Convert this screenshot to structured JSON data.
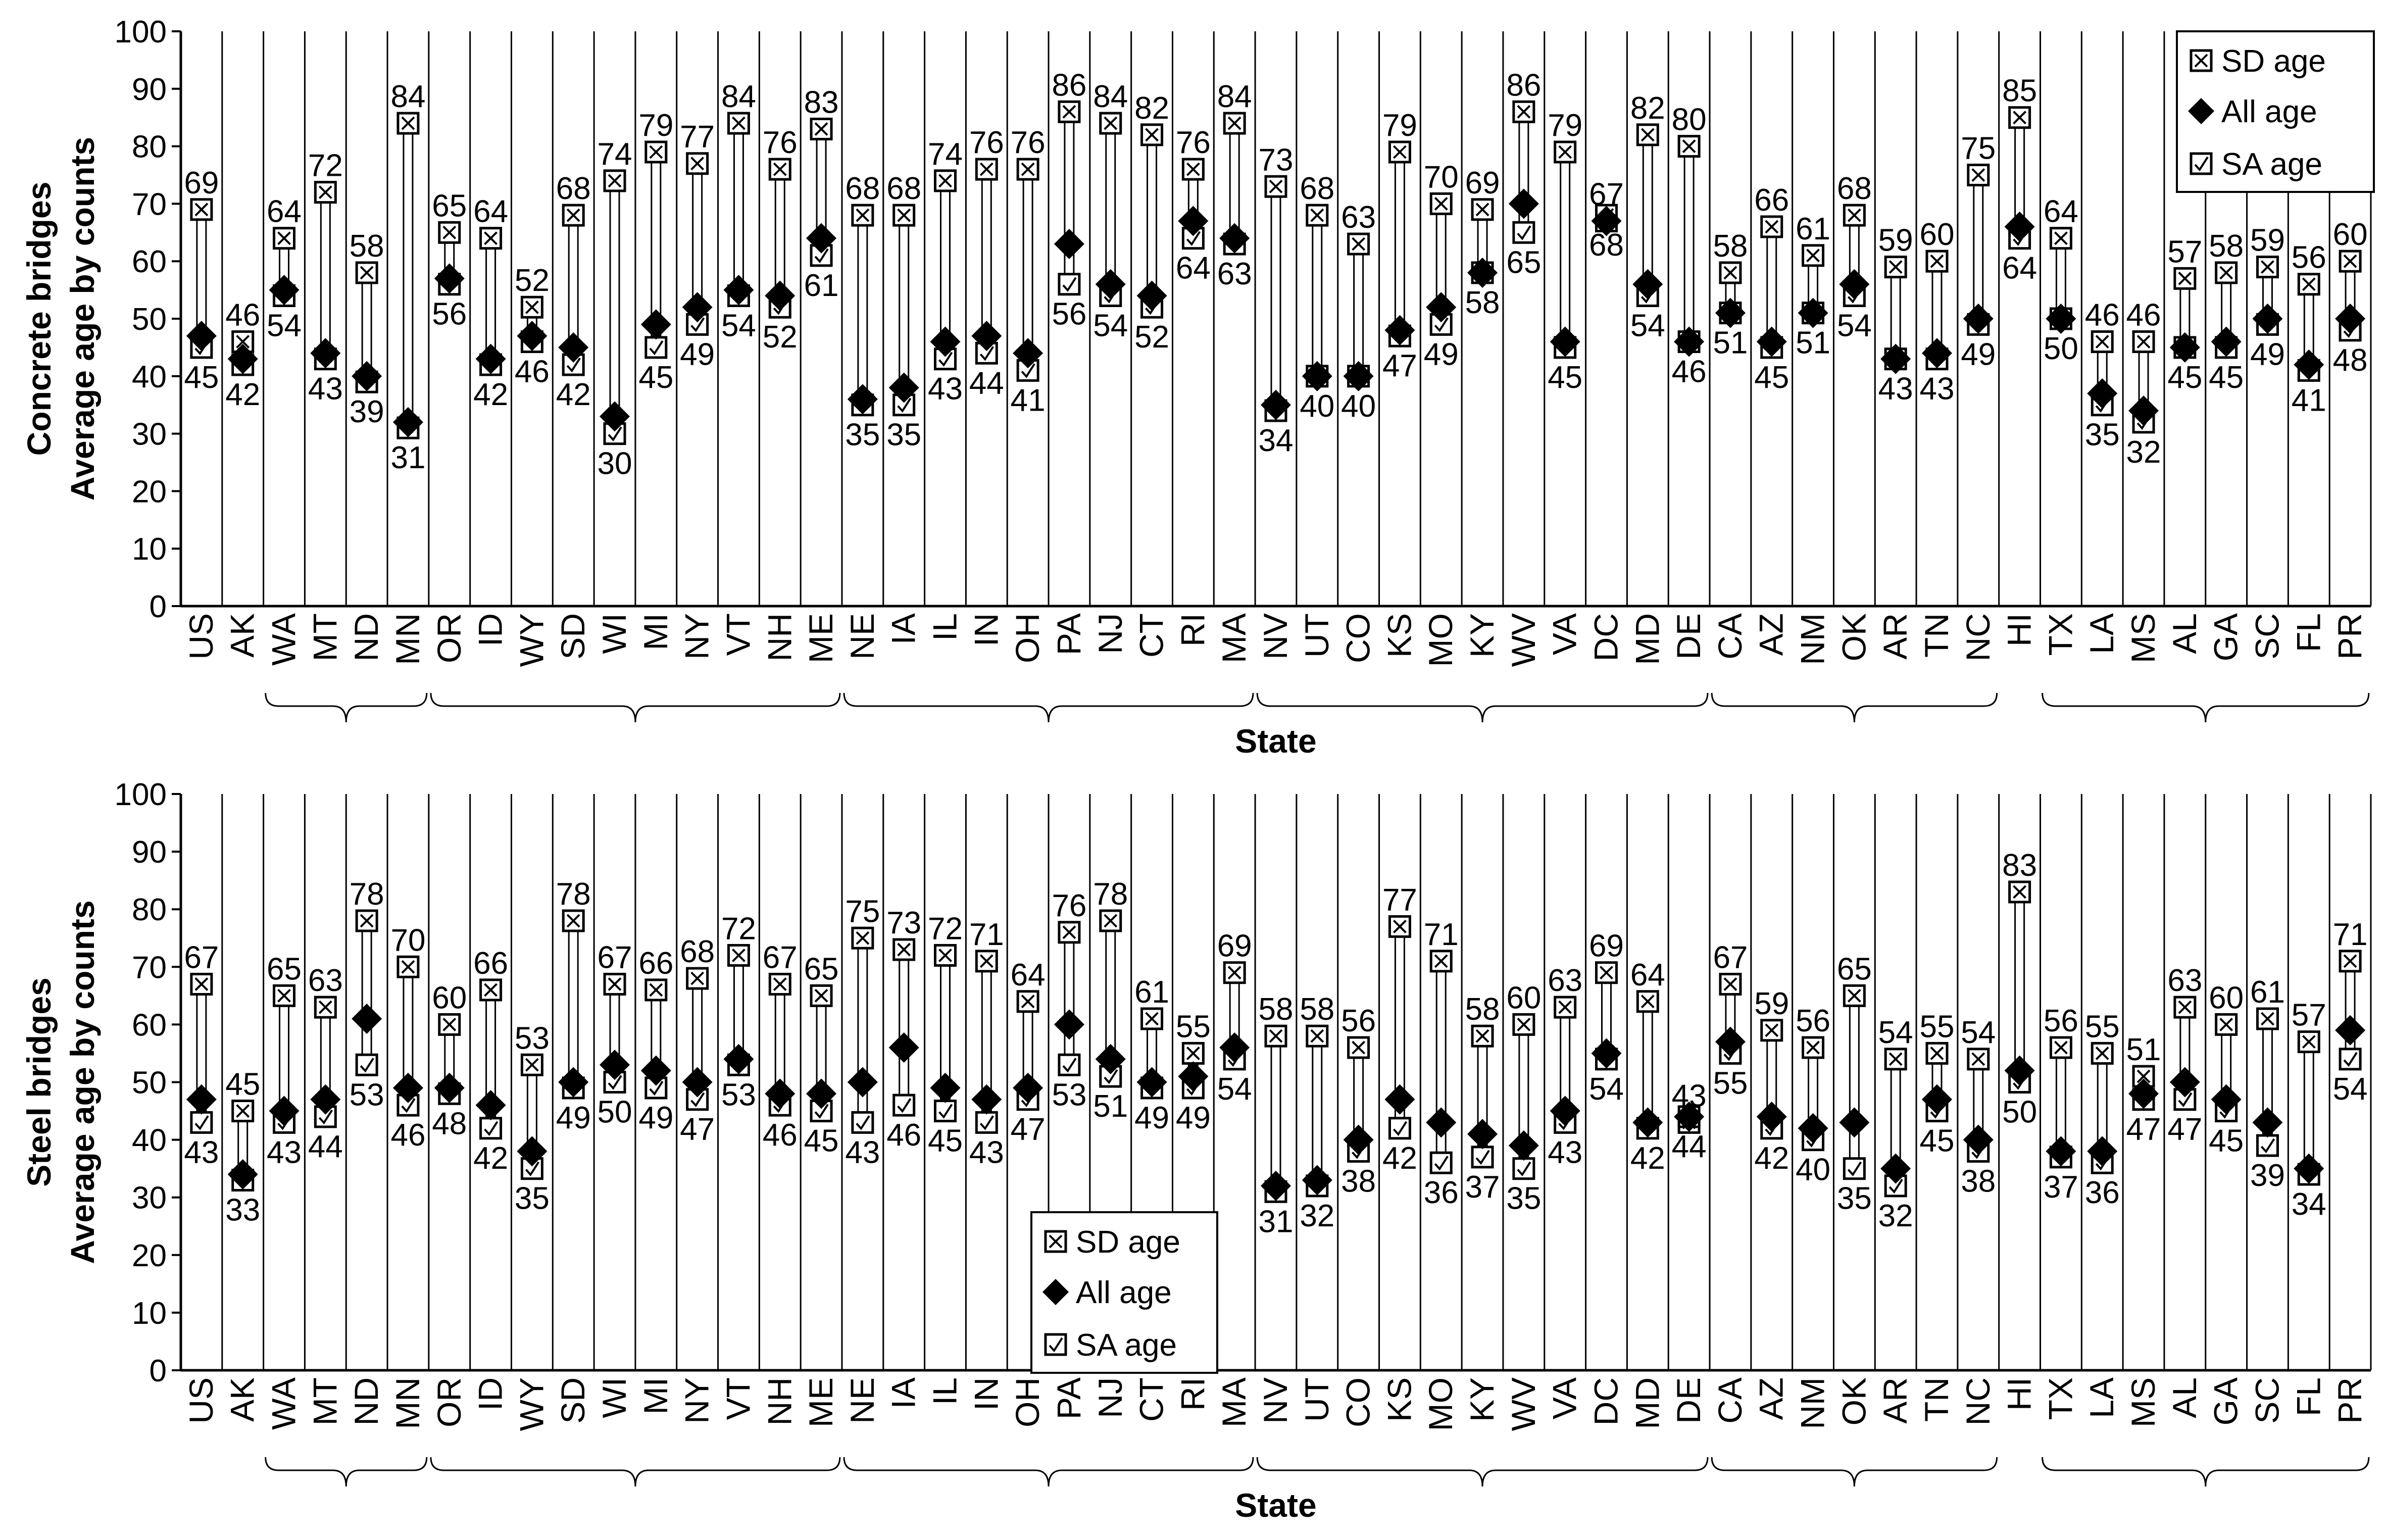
{
  "colors": {
    "ink": "#000000",
    "background": "#ffffff",
    "marker_fill": "#ffffff",
    "all_age_marker": "#000000"
  },
  "x_axis_title": "State",
  "region_brackets": [
    {
      "from": "WA",
      "to": "MN"
    },
    {
      "from": "OR",
      "to": "ME"
    },
    {
      "from": "NE",
      "to": "MA"
    },
    {
      "from": "NV",
      "to": "DE"
    },
    {
      "from": "CA",
      "to": "NC"
    },
    {
      "from": "TX",
      "to": "PR"
    }
  ],
  "chart_data": [
    {
      "type": "scatter",
      "title": "",
      "ylabel_line1": "Concrete bridges",
      "ylabel_line2": "Average age by counts",
      "xlabel": "State",
      "ylim": [
        0,
        100
      ],
      "yticks": [
        0,
        10,
        20,
        30,
        40,
        50,
        60,
        70,
        80,
        90,
        100
      ],
      "grid": "vertical separators between states",
      "legend_placement": "top-right",
      "categories": [
        "US",
        "AK",
        "WA",
        "MT",
        "ND",
        "MN",
        "OR",
        "ID",
        "WY",
        "SD",
        "WI",
        "MI",
        "NY",
        "VT",
        "NH",
        "ME",
        "NE",
        "IA",
        "IL",
        "IN",
        "OH",
        "PA",
        "NJ",
        "CT",
        "RI",
        "MA",
        "NV",
        "UT",
        "CO",
        "KS",
        "MO",
        "KY",
        "WV",
        "VA",
        "DC",
        "MD",
        "DE",
        "CA",
        "AZ",
        "NM",
        "OK",
        "AR",
        "TN",
        "NC",
        "HI",
        "TX",
        "LA",
        "MS",
        "AL",
        "GA",
        "SC",
        "FL",
        "PR"
      ],
      "series": [
        {
          "name": "SD age",
          "marker": "square-x",
          "labeled": true,
          "values": [
            69,
            46,
            64,
            72,
            58,
            84,
            65,
            64,
            52,
            68,
            74,
            79,
            77,
            84,
            76,
            83,
            68,
            68,
            74,
            76,
            76,
            86,
            84,
            82,
            76,
            84,
            73,
            68,
            63,
            79,
            70,
            69,
            86,
            79,
            67,
            82,
            80,
            58,
            66,
            61,
            68,
            59,
            60,
            75,
            85,
            64,
            46,
            46,
            57,
            58,
            59,
            56,
            60
          ]
        },
        {
          "name": "All age",
          "marker": "diamond",
          "labeled": false,
          "values": [
            47,
            43,
            55,
            44,
            40,
            32,
            57,
            43,
            47,
            45,
            33,
            49,
            52,
            55,
            54,
            64,
            36,
            38,
            46,
            47,
            44,
            63,
            56,
            54,
            67,
            64,
            35,
            40,
            40,
            48,
            52,
            58,
            70,
            46,
            67,
            56,
            46,
            51,
            46,
            51,
            56,
            43,
            44,
            50,
            66,
            50,
            37,
            34,
            45,
            46,
            50,
            42,
            50
          ]
        },
        {
          "name": "SA age",
          "marker": "square-check",
          "labeled": true,
          "values": [
            45,
            42,
            54,
            43,
            39,
            31,
            56,
            42,
            46,
            42,
            30,
            45,
            49,
            54,
            52,
            61,
            35,
            35,
            43,
            44,
            41,
            56,
            54,
            52,
            64,
            63,
            34,
            40,
            40,
            47,
            49,
            58,
            65,
            45,
            68,
            54,
            46,
            51,
            45,
            51,
            54,
            43,
            43,
            49,
            64,
            50,
            35,
            32,
            45,
            45,
            49,
            41,
            48
          ]
        }
      ]
    },
    {
      "type": "scatter",
      "title": "",
      "ylabel_line1": "Steel bridges",
      "ylabel_line2": "Average age by counts",
      "xlabel": "State",
      "ylim": [
        0,
        100
      ],
      "yticks": [
        0,
        10,
        20,
        30,
        40,
        50,
        60,
        70,
        80,
        90,
        100
      ],
      "grid": "vertical separators between states",
      "legend_placement": "bottom-center-left",
      "categories": [
        "US",
        "AK",
        "WA",
        "MT",
        "ND",
        "MN",
        "OR",
        "ID",
        "WY",
        "SD",
        "WI",
        "MI",
        "NY",
        "VT",
        "NH",
        "ME",
        "NE",
        "IA",
        "IL",
        "IN",
        "OH",
        "PA",
        "NJ",
        "CT",
        "RI",
        "MA",
        "NV",
        "UT",
        "CO",
        "KS",
        "MO",
        "KY",
        "WV",
        "VA",
        "DC",
        "MD",
        "DE",
        "CA",
        "AZ",
        "NM",
        "OK",
        "AR",
        "TN",
        "NC",
        "HI",
        "TX",
        "LA",
        "MS",
        "AL",
        "GA",
        "SC",
        "FL",
        "PR"
      ],
      "series": [
        {
          "name": "SD age",
          "marker": "square-x",
          "labeled": true,
          "values": [
            67,
            45,
            65,
            63,
            78,
            70,
            60,
            66,
            53,
            78,
            67,
            66,
            68,
            72,
            67,
            65,
            75,
            73,
            72,
            71,
            64,
            76,
            78,
            61,
            55,
            69,
            58,
            58,
            56,
            77,
            71,
            58,
            60,
            63,
            69,
            64,
            43,
            67,
            59,
            56,
            65,
            54,
            55,
            54,
            83,
            56,
            55,
            51,
            63,
            60,
            61,
            57,
            71
          ]
        },
        {
          "name": "All age",
          "marker": "diamond",
          "labeled": false,
          "values": [
            47,
            34,
            45,
            47,
            61,
            49,
            49,
            46,
            38,
            50,
            53,
            52,
            50,
            54,
            48,
            48,
            50,
            56,
            49,
            47,
            49,
            60,
            54,
            50,
            51,
            56,
            32,
            33,
            40,
            47,
            43,
            41,
            39,
            45,
            55,
            43,
            44,
            57,
            44,
            42,
            43,
            35,
            47,
            40,
            52,
            38,
            38,
            48,
            50,
            47,
            43,
            35,
            59
          ]
        },
        {
          "name": "SA age",
          "marker": "square-check",
          "labeled": true,
          "values": [
            43,
            33,
            43,
            44,
            53,
            46,
            48,
            42,
            35,
            49,
            50,
            49,
            47,
            53,
            46,
            45,
            43,
            46,
            45,
            43,
            47,
            53,
            51,
            49,
            49,
            54,
            31,
            32,
            38,
            42,
            36,
            37,
            35,
            43,
            54,
            42,
            44,
            55,
            42,
            40,
            35,
            32,
            45,
            38,
            50,
            37,
            36,
            47,
            47,
            45,
            39,
            34,
            54
          ]
        }
      ]
    }
  ]
}
